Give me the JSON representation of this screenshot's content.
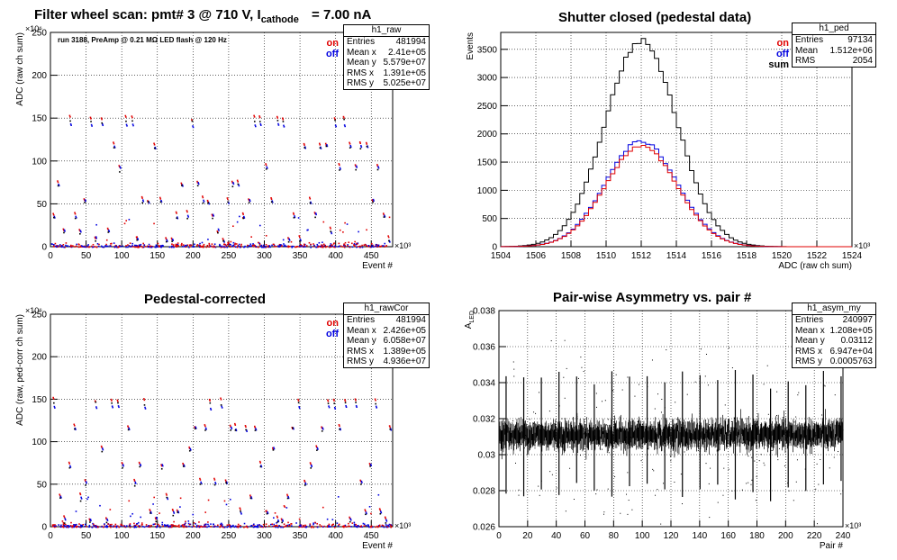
{
  "chart_data": [
    {
      "id": "raw",
      "type": "scatter",
      "title": "Filter wheel scan: pmt#   3 @   710 V, I",
      "title_sub": "cathode",
      "title_tail": "= 7.00 nA",
      "annotation": "run 3188, PreAmp @ 0.21 MΩ   LED flash @  120 Hz",
      "xlabel": "Event #",
      "ylabel": "ADC (raw ch sum)",
      "x_multiplier": "×10³",
      "y_multiplier": "×10⁶",
      "xlim": [
        0,
        480
      ],
      "ylim": [
        0,
        250
      ],
      "xticks": [
        0,
        50,
        100,
        150,
        200,
        250,
        300,
        350,
        400,
        450
      ],
      "yticks": [
        0,
        50,
        100,
        150,
        200,
        250
      ],
      "grid": true,
      "legend": [
        "on",
        "off"
      ],
      "series_colors": [
        "#e00000",
        "#0000e0"
      ],
      "clusters_on": [
        152,
        121,
        96,
        77,
        57,
        40,
        22,
        12
      ],
      "clusters_off": [
        143,
        118,
        94,
        75,
        54,
        37,
        20,
        10
      ],
      "stats": {
        "name": "h1_raw",
        "rows": [
          [
            "Entries",
            "481994"
          ],
          [
            "Mean x",
            "2.41e+05"
          ],
          [
            "Mean y",
            "5.579e+07"
          ],
          [
            "RMS x",
            "1.391e+05"
          ],
          [
            "RMS y",
            "5.025e+07"
          ]
        ]
      }
    },
    {
      "id": "ped",
      "type": "histogram",
      "title": "Shutter closed (pedestal data)",
      "xlabel": "ADC (raw ch sum)",
      "ylabel": "Events",
      "x_multiplier": "×10³",
      "xlim": [
        1504,
        1524
      ],
      "ylim": [
        0,
        3800
      ],
      "xticks": [
        1504,
        1506,
        1508,
        1510,
        1512,
        1514,
        1516,
        1518,
        1520,
        1522,
        1524
      ],
      "yticks": [
        0,
        500,
        1000,
        1500,
        2000,
        2500,
        3000,
        3500
      ],
      "grid": true,
      "legend": [
        "on",
        "off",
        "sum"
      ],
      "series_colors": [
        "#e00000",
        "#0000e0",
        "#000000"
      ],
      "series": [
        {
          "name": "sum",
          "mean": 1512.0,
          "sigma": 2.05,
          "peak": 3650
        },
        {
          "name": "off",
          "mean": 1512.0,
          "sigma": 2.05,
          "peak": 1870
        },
        {
          "name": "on",
          "mean": 1512.0,
          "sigma": 2.05,
          "peak": 1780
        }
      ],
      "stats": {
        "name": "h1_ped",
        "rows": [
          [
            "Entries",
            "97134"
          ],
          [
            "Mean",
            "1.512e+06"
          ],
          [
            "RMS",
            "2054"
          ]
        ]
      }
    },
    {
      "id": "rawCor",
      "type": "scatter",
      "title": "Pedestal-corrected",
      "xlabel": "Event #",
      "ylabel": "ADC (raw, ped-corr ch sum)",
      "x_multiplier": "×10³",
      "y_multiplier": "×10⁶",
      "xlim": [
        0,
        480
      ],
      "ylim": [
        0,
        250
      ],
      "xticks": [
        0,
        50,
        100,
        150,
        200,
        250,
        300,
        350,
        400,
        450
      ],
      "yticks": [
        0,
        50,
        100,
        150,
        200,
        250
      ],
      "grid": true,
      "legend": [
        "on",
        "off"
      ],
      "series_colors": [
        "#e00000",
        "#0000e0"
      ],
      "clusters_on": [
        151,
        120,
        95,
        76,
        56,
        39,
        21,
        11
      ],
      "clusters_off": [
        142,
        117,
        93,
        74,
        53,
        36,
        19,
        9
      ],
      "stats": {
        "name": "h1_rawCor",
        "rows": [
          [
            "Entries",
            "481994"
          ],
          [
            "Mean x",
            "2.426e+05"
          ],
          [
            "Mean y",
            "6.058e+07"
          ],
          [
            "RMS x",
            "1.389e+05"
          ],
          [
            "RMS y",
            "4.936e+07"
          ]
        ]
      }
    },
    {
      "id": "asym",
      "type": "scatter",
      "title": "Pair-wise Asymmetry vs. pair #",
      "xlabel": "Pair #",
      "ylabel": "A",
      "ylabel_sub": "LED",
      "x_multiplier": "×10³",
      "xlim": [
        0,
        240
      ],
      "ylim": [
        0.026,
        0.038
      ],
      "xticks": [
        0,
        20,
        40,
        60,
        80,
        100,
        120,
        140,
        160,
        180,
        200,
        220,
        240
      ],
      "yticks": [
        0.026,
        0.028,
        0.03,
        0.032,
        0.034,
        0.036,
        0.038
      ],
      "ytick_labels": [
        "0.026",
        "0.028",
        "0.03",
        "0.032",
        "0.034",
        "0.036",
        "0.038"
      ],
      "grid": true,
      "band_center": 0.0311,
      "band_halfwidth": 0.0006,
      "stats": {
        "name": "h1_asym_my",
        "rows": [
          [
            "Entries",
            "240997"
          ],
          [
            "Mean x",
            "1.208e+05"
          ],
          [
            "Mean y",
            "0.03112"
          ],
          [
            "RMS x",
            "6.947e+04"
          ],
          [
            "RMS y",
            "0.0005763"
          ]
        ]
      }
    }
  ]
}
